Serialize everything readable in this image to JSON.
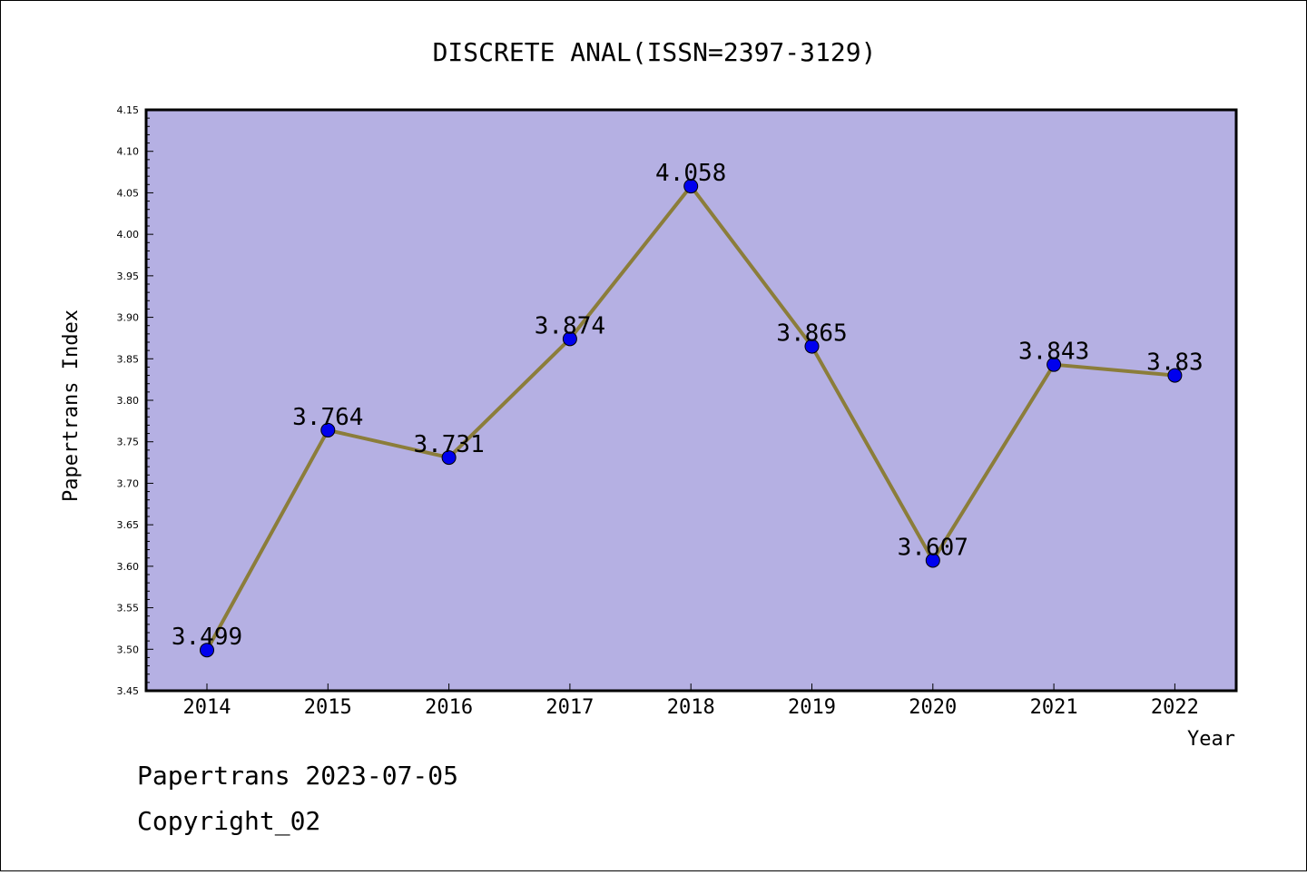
{
  "chart_data": {
    "type": "line",
    "title": "DISCRETE ANAL(ISSN=2397-3129)",
    "xlabel": "Year",
    "ylabel": "Papertrans Index",
    "categories": [
      "2014",
      "2015",
      "2016",
      "2017",
      "2018",
      "2019",
      "2020",
      "2021",
      "2022"
    ],
    "series": [
      {
        "values": [
          3.499,
          3.764,
          3.731,
          3.874,
          4.058,
          3.865,
          3.607,
          3.843,
          3.83
        ],
        "labels": [
          "3.499",
          "3.764",
          "3.731",
          "3.874",
          "4.058",
          "3.865",
          "3.607",
          "3.843",
          "3.83"
        ]
      }
    ],
    "ylim": [
      3.45,
      4.15
    ],
    "yticks": [
      "3.45",
      "3.50",
      "3.55",
      "3.60",
      "3.65",
      "3.70",
      "3.75",
      "3.80",
      "3.85",
      "3.90",
      "3.95",
      "4.00",
      "4.05",
      "4.10",
      "4.15"
    ],
    "grid": false,
    "colors": {
      "plot_background": "#b5b0e3",
      "line": "#8b7d3a",
      "marker": "#0000ee"
    }
  },
  "footer": {
    "line1": "Papertrans 2023-07-05",
    "line2": "Copyright_02"
  }
}
